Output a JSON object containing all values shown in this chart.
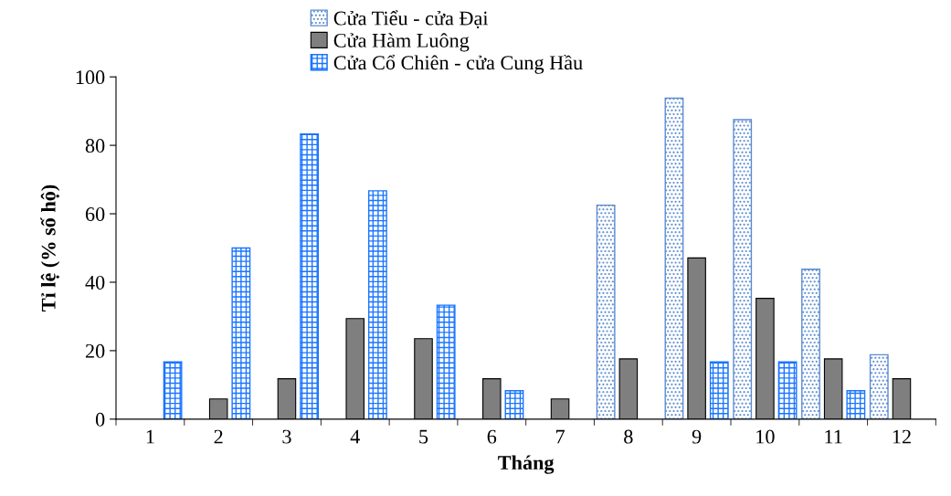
{
  "chart_data": {
    "type": "bar",
    "xlabel": "Tháng",
    "ylabel": "Tỉ lệ (% số hộ)",
    "categories": [
      "1",
      "2",
      "3",
      "4",
      "5",
      "6",
      "7",
      "8",
      "9",
      "10",
      "11",
      "12"
    ],
    "series": [
      {
        "name": "Cửa Tiểu - cửa Đại",
        "color": "#5b8bd0",
        "values": [
          0,
          0,
          0,
          0,
          0,
          0,
          0,
          62.5,
          93.8,
          87.5,
          43.8,
          18.8
        ]
      },
      {
        "name": "Cửa Hàm Luông",
        "color": "#7f7f7f",
        "values": [
          0,
          5.9,
          11.8,
          29.4,
          23.5,
          11.8,
          5.9,
          17.6,
          47.1,
          35.3,
          17.6,
          11.8
        ]
      },
      {
        "name": "Cửa Cổ Chiên - cửa Cung Hầu",
        "color": "#1a75ff",
        "values": [
          16.7,
          50,
          83.3,
          66.7,
          33.3,
          8.3,
          0,
          0,
          16.7,
          16.7,
          8.3,
          0
        ]
      }
    ],
    "ylim": [
      0,
      100
    ],
    "yticks": [
      0,
      20,
      40,
      60,
      80,
      100
    ],
    "grid": false,
    "legend": "top"
  }
}
